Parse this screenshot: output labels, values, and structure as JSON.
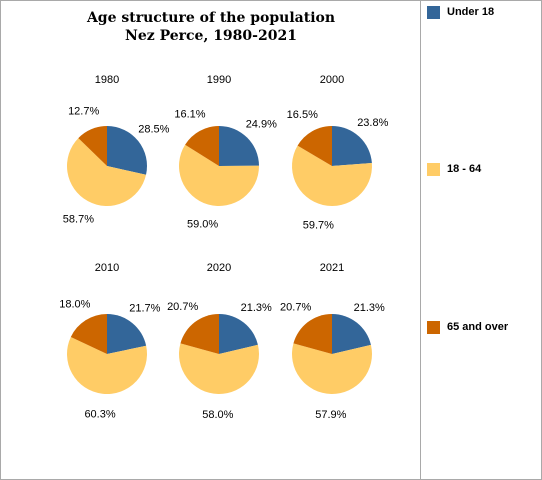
{
  "colors": {
    "under_18": "#336699",
    "age_18_64": "#FFCC66",
    "over_65": "#CC6600"
  },
  "chart_data": {
    "type": "pie",
    "title": "Age structure of the population",
    "subtitle": "Nez Perce, 1980-2021",
    "legend_position": "right",
    "legend": [
      "Under 18",
      "18 - 64",
      "65 and over"
    ],
    "pies": [
      {
        "label": "1980",
        "slices": [
          {
            "name": "Under 18",
            "value": 28.5,
            "label": "28.5%"
          },
          {
            "name": "18 - 64",
            "value": 58.7,
            "label": "58.7%"
          },
          {
            "name": "65 and over",
            "value": 12.7,
            "label": "12.7%"
          }
        ]
      },
      {
        "label": "1990",
        "slices": [
          {
            "name": "Under 18",
            "value": 24.9,
            "label": "24.9%"
          },
          {
            "name": "18 - 64",
            "value": 59.0,
            "label": "59.0%"
          },
          {
            "name": "65 and over",
            "value": 16.1,
            "label": "16.1%"
          }
        ]
      },
      {
        "label": "2000",
        "slices": [
          {
            "name": "Under 18",
            "value": 23.8,
            "label": "23.8%"
          },
          {
            "name": "18 - 64",
            "value": 59.7,
            "label": "59.7%"
          },
          {
            "name": "65 and over",
            "value": 16.5,
            "label": "16.5%"
          }
        ]
      },
      {
        "label": "2010",
        "slices": [
          {
            "name": "Under 18",
            "value": 21.7,
            "label": "21.7%"
          },
          {
            "name": "18 - 64",
            "value": 60.3,
            "label": "60.3%"
          },
          {
            "name": "65 and over",
            "value": 18.0,
            "label": "18.0%"
          }
        ]
      },
      {
        "label": "2020",
        "slices": [
          {
            "name": "Under 18",
            "value": 21.3,
            "label": "21.3%"
          },
          {
            "name": "18 - 64",
            "value": 58.0,
            "label": "58.0%"
          },
          {
            "name": "65 and over",
            "value": 20.7,
            "label": "20.7%"
          }
        ]
      },
      {
        "label": "2021",
        "slices": [
          {
            "name": "Under 18",
            "value": 21.3,
            "label": "21.3%"
          },
          {
            "name": "18 - 64",
            "value": 57.9,
            "label": "57.9%"
          },
          {
            "name": "65 and over",
            "value": 20.7,
            "label": "20.7%"
          }
        ]
      }
    ]
  }
}
